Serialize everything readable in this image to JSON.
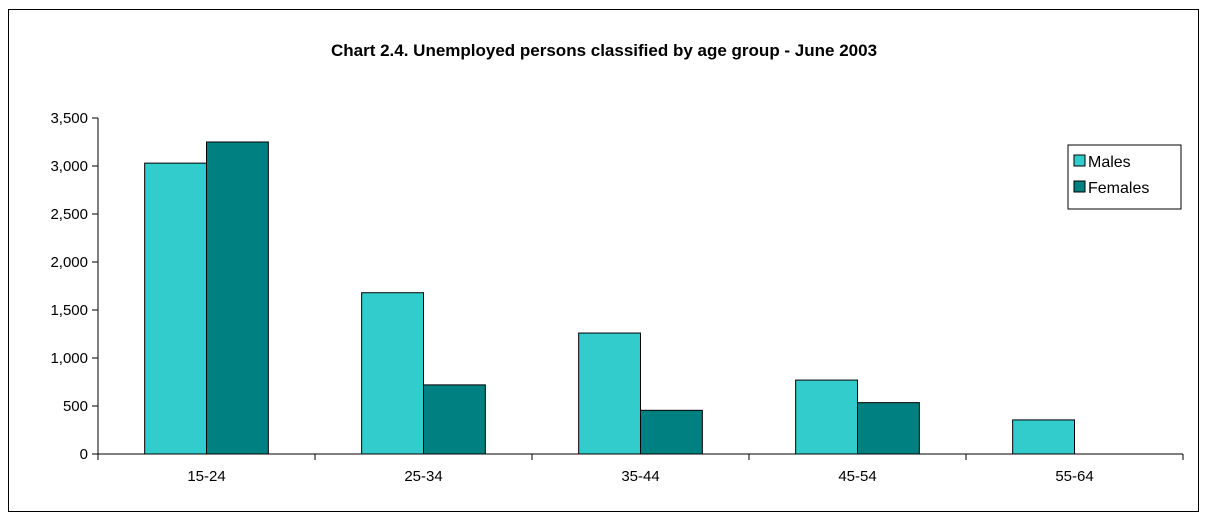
{
  "chart_data": {
    "type": "bar",
    "title": "Chart 2.4.  Unemployed persons classified by age group - June 2003",
    "xlabel": "",
    "ylabel": "",
    "categories": [
      "15-24",
      "25-34",
      "35-44",
      "45-54",
      "55-64"
    ],
    "series": [
      {
        "name": "Males",
        "color": "#33CCCC",
        "values": [
          3030,
          1680,
          1260,
          770,
          355
        ]
      },
      {
        "name": "Females",
        "color": "#008080",
        "values": [
          3250,
          720,
          455,
          535,
          0
        ]
      }
    ],
    "ylim": [
      0,
      3500
    ],
    "yticks": [
      {
        "value": 0,
        "label": "0"
      },
      {
        "value": 500,
        "label": "500"
      },
      {
        "value": 1000,
        "label": "1,000"
      },
      {
        "value": 1500,
        "label": "1,500"
      },
      {
        "value": 2000,
        "label": "2,000"
      },
      {
        "value": 2500,
        "label": "2,500"
      },
      {
        "value": 3000,
        "label": "3,000"
      },
      {
        "value": 3500,
        "label": "3,500"
      }
    ],
    "grid": false,
    "legend_position": "right"
  }
}
